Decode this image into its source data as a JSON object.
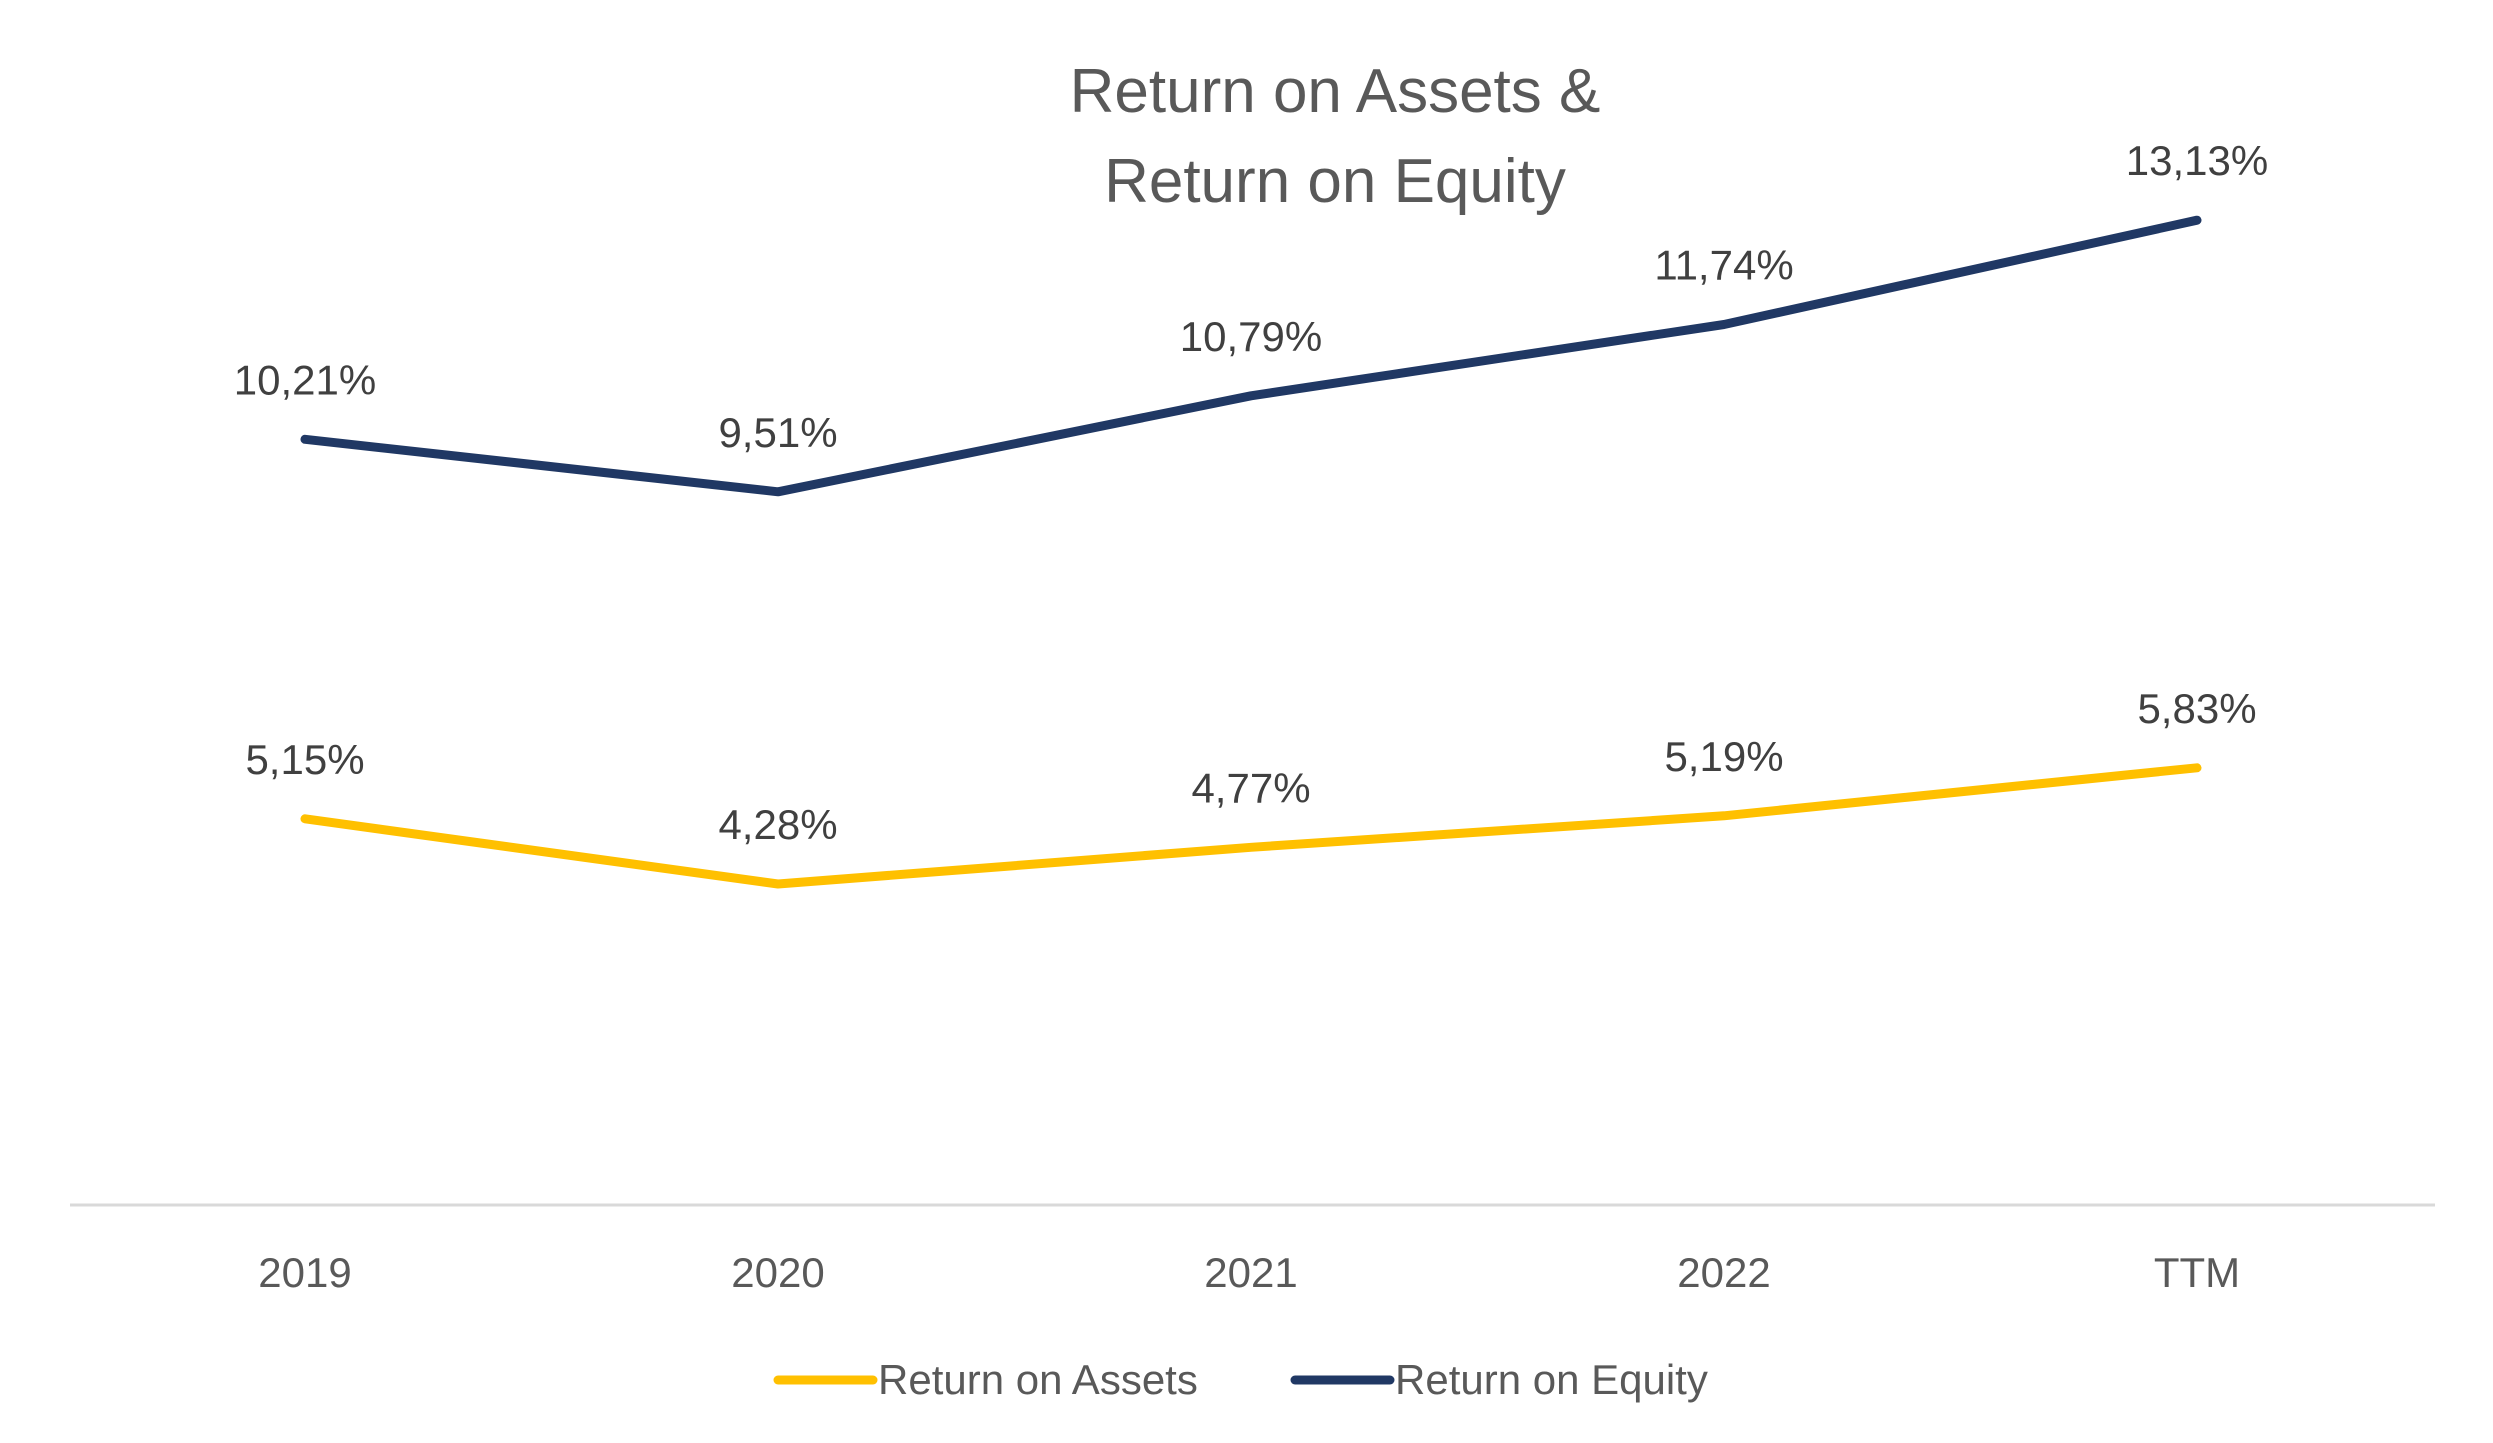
{
  "chart_data": {
    "type": "line",
    "title": "Return on Assets & Return on Equity",
    "title_lines": [
      "Return on Assets &",
      "Return on Equity"
    ],
    "categories": [
      "2019",
      "2020",
      "2021",
      "2022",
      "TTM"
    ],
    "series": [
      {
        "name": "Return on Assets",
        "values": [
          5.15,
          4.28,
          4.77,
          5.19,
          5.83
        ],
        "labels": [
          "5,15%",
          "4,28%",
          "4,77%",
          "5,19%",
          "5,83%"
        ],
        "color": "#FFC000"
      },
      {
        "name": "Return on Equity",
        "values": [
          10.21,
          9.51,
          10.79,
          11.74,
          13.13
        ],
        "labels": [
          "10,21%",
          "9,51%",
          "10,79%",
          "11,74%",
          "13,13%"
        ],
        "color": "#203864"
      }
    ],
    "xlabel": "",
    "ylabel": "",
    "ylim": [
      0,
      14
    ],
    "grid": false,
    "y_axis_visible": false,
    "legend": "bottom",
    "axis_line_color": "#D9D9D9"
  }
}
